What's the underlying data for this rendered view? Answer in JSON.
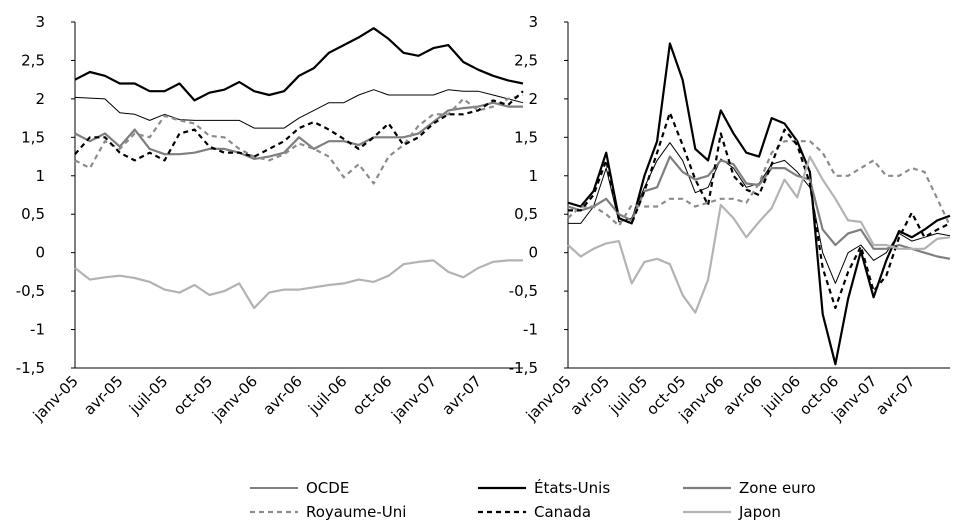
{
  "chart_data": [
    {
      "type": "line",
      "categories": [
        "janv-05",
        null,
        null,
        "avr-05",
        null,
        null,
        "juil-05",
        null,
        null,
        "oct-05",
        null,
        null,
        "janv-06",
        null,
        null,
        "avr-06",
        null,
        null,
        "juil-06",
        null,
        null,
        "oct-06",
        null,
        null,
        "janv-07",
        null,
        null,
        "avr-07",
        null,
        null,
        null
      ],
      "ylim": [
        -1.5,
        3
      ],
      "yticks": [
        {
          "value": -1.5,
          "label": "-1,5"
        },
        -1,
        {
          "value": -0.5,
          "label": "-0,5"
        },
        0,
        {
          "value": 0.5,
          "label": "0,5"
        },
        1,
        {
          "value": 1.5,
          "label": "1,5"
        },
        2,
        {
          "value": 2.5,
          "label": "2,5"
        },
        3
      ],
      "legend": "bottom",
      "series": [
        {
          "name": "OCDE",
          "color": "#000000",
          "width": 1,
          "style": "solid",
          "values": [
            2.02,
            2.01,
            2.0,
            1.82,
            1.8,
            1.72,
            1.8,
            1.73,
            1.72,
            1.72,
            1.72,
            1.72,
            1.62,
            1.62,
            1.62,
            1.75,
            1.85,
            1.95,
            1.95,
            2.05,
            2.12,
            2.05,
            2.05,
            2.05,
            2.05,
            2.12,
            2.1,
            2.1,
            2.05,
            2.0,
            1.95
          ]
        },
        {
          "name": "États-Unis",
          "color": "#000000",
          "width": 2.2,
          "style": "solid",
          "values": [
            2.25,
            2.35,
            2.3,
            2.2,
            2.2,
            2.1,
            2.1,
            2.2,
            1.98,
            2.08,
            2.12,
            2.22,
            2.1,
            2.05,
            2.1,
            2.3,
            2.4,
            2.6,
            2.7,
            2.8,
            2.92,
            2.78,
            2.6,
            2.56,
            2.66,
            2.7,
            2.48,
            2.38,
            2.3,
            2.24,
            2.2
          ]
        },
        {
          "name": "Zone euro",
          "color": "#7f7f7f",
          "width": 2.2,
          "style": "solid",
          "values": [
            1.55,
            1.45,
            1.55,
            1.38,
            1.6,
            1.35,
            1.28,
            1.28,
            1.3,
            1.35,
            1.35,
            1.3,
            1.22,
            1.25,
            1.3,
            1.5,
            1.35,
            1.45,
            1.45,
            1.4,
            1.5,
            1.5,
            1.5,
            1.55,
            1.7,
            1.85,
            1.88,
            1.9,
            1.95,
            1.9,
            1.9
          ]
        },
        {
          "name": "Royaume-Uni",
          "color": "#8c8c8c",
          "width": 2.2,
          "style": "dashed",
          "values": [
            1.2,
            1.1,
            1.45,
            1.35,
            1.55,
            1.5,
            1.78,
            1.72,
            1.68,
            1.52,
            1.5,
            1.35,
            1.25,
            1.2,
            1.28,
            1.42,
            1.35,
            1.25,
            0.98,
            1.15,
            0.9,
            1.25,
            1.4,
            1.65,
            1.8,
            1.8,
            2.0,
            1.85,
            1.9,
            2.0,
            2.05
          ]
        },
        {
          "name": "Canada",
          "color": "#000000",
          "width": 2.2,
          "style": "dashed",
          "values": [
            1.28,
            1.5,
            1.5,
            1.3,
            1.2,
            1.3,
            1.2,
            1.55,
            1.6,
            1.38,
            1.3,
            1.3,
            1.25,
            1.35,
            1.45,
            1.62,
            1.7,
            1.6,
            1.48,
            1.35,
            1.5,
            1.68,
            1.4,
            1.5,
            1.68,
            1.8,
            1.8,
            1.85,
            1.98,
            1.92,
            2.1
          ]
        },
        {
          "name": "Japon",
          "color": "#b3b3b3",
          "width": 2.2,
          "style": "solid",
          "values": [
            -0.2,
            -0.35,
            -0.32,
            -0.3,
            -0.33,
            -0.38,
            -0.48,
            -0.52,
            -0.42,
            -0.55,
            -0.5,
            -0.4,
            -0.72,
            -0.52,
            -0.48,
            -0.48,
            -0.45,
            -0.42,
            -0.4,
            -0.35,
            -0.38,
            -0.3,
            -0.15,
            -0.12,
            -0.1,
            -0.25,
            -0.32,
            -0.2,
            -0.12,
            -0.1,
            -0.1
          ]
        }
      ]
    },
    {
      "type": "line",
      "categories": [
        "janv-05",
        null,
        null,
        "avr-05",
        null,
        null,
        "juil-05",
        null,
        null,
        "oct-05",
        null,
        null,
        "janv-06",
        null,
        null,
        "avr-06",
        null,
        null,
        "juil-06",
        null,
        null,
        "oct-06",
        null,
        null,
        "janv-07",
        null,
        null,
        "avr-07",
        null,
        null,
        null
      ],
      "ylim": [
        -1.5,
        3
      ],
      "yticks": [
        {
          "value": -1.5,
          "label": "-1,5"
        },
        -1,
        {
          "value": -0.5,
          "label": "-0,5"
        },
        0,
        {
          "value": 0.5,
          "label": "0,5"
        },
        1,
        {
          "value": 1.5,
          "label": "1,5"
        },
        2,
        {
          "value": 2.5,
          "label": "2,5"
        },
        3
      ],
      "series": [
        {
          "color": "#000000",
          "width": 1,
          "style": "solid",
          "values": [
            0.38,
            0.38,
            0.6,
            1.1,
            0.4,
            0.45,
            0.85,
            1.2,
            1.43,
            1.2,
            0.78,
            0.85,
            1.22,
            1.1,
            0.85,
            0.9,
            1.15,
            1.2,
            1.05,
            0.85,
            0.0,
            -0.4,
            0.0,
            0.1,
            -0.1,
            0.0,
            0.25,
            0.15,
            0.2,
            0.25,
            0.22
          ]
        },
        {
          "color": "#000000",
          "width": 2.2,
          "style": "solid",
          "values": [
            0.65,
            0.6,
            0.8,
            1.3,
            0.45,
            0.38,
            1.0,
            1.45,
            2.72,
            2.25,
            1.35,
            1.2,
            1.85,
            1.55,
            1.3,
            1.25,
            1.75,
            1.68,
            1.45,
            1.05,
            -0.8,
            -1.45,
            -0.6,
            0.02,
            -0.58,
            -0.1,
            0.28,
            0.2,
            0.3,
            0.42,
            0.48
          ]
        },
        {
          "color": "#7f7f7f",
          "width": 2.2,
          "style": "solid",
          "values": [
            0.6,
            0.55,
            0.6,
            0.7,
            0.5,
            0.42,
            0.8,
            0.85,
            1.25,
            1.05,
            0.95,
            1.0,
            1.2,
            1.15,
            0.9,
            0.88,
            1.1,
            1.1,
            1.0,
            0.95,
            0.3,
            0.1,
            0.25,
            0.3,
            0.05,
            0.05,
            0.1,
            0.05,
            0.0,
            -0.05,
            -0.08
          ]
        },
        {
          "color": "#8c8c8c",
          "width": 2.2,
          "style": "dashed",
          "values": [
            0.45,
            0.6,
            0.6,
            0.5,
            0.35,
            0.62,
            0.6,
            0.6,
            0.7,
            0.7,
            0.6,
            0.65,
            0.7,
            0.7,
            0.65,
            0.9,
            1.3,
            1.45,
            1.45,
            1.45,
            1.3,
            1.0,
            1.0,
            1.1,
            1.2,
            1.0,
            1.0,
            1.1,
            1.05,
            0.7,
            0.35
          ]
        },
        {
          "color": "#000000",
          "width": 2.2,
          "style": "dashed",
          "values": [
            0.55,
            0.55,
            0.75,
            1.2,
            0.45,
            0.38,
            0.8,
            1.3,
            1.82,
            1.4,
            0.95,
            0.62,
            1.55,
            1.0,
            0.82,
            0.75,
            1.15,
            1.6,
            1.4,
            0.9,
            -0.2,
            -0.72,
            -0.25,
            0.08,
            -0.5,
            -0.3,
            0.2,
            0.52,
            0.2,
            0.3,
            0.38
          ]
        },
        {
          "color": "#b3b3b3",
          "width": 2.2,
          "style": "solid",
          "values": [
            0.1,
            -0.05,
            0.05,
            0.12,
            0.15,
            -0.4,
            -0.12,
            -0.08,
            -0.15,
            -0.55,
            -0.78,
            -0.35,
            0.62,
            0.45,
            0.2,
            0.4,
            0.58,
            0.95,
            0.72,
            1.25,
            0.95,
            0.7,
            0.42,
            0.4,
            0.1,
            0.1,
            0.05,
            0.05,
            0.05,
            0.18,
            0.2
          ]
        }
      ]
    }
  ]
}
